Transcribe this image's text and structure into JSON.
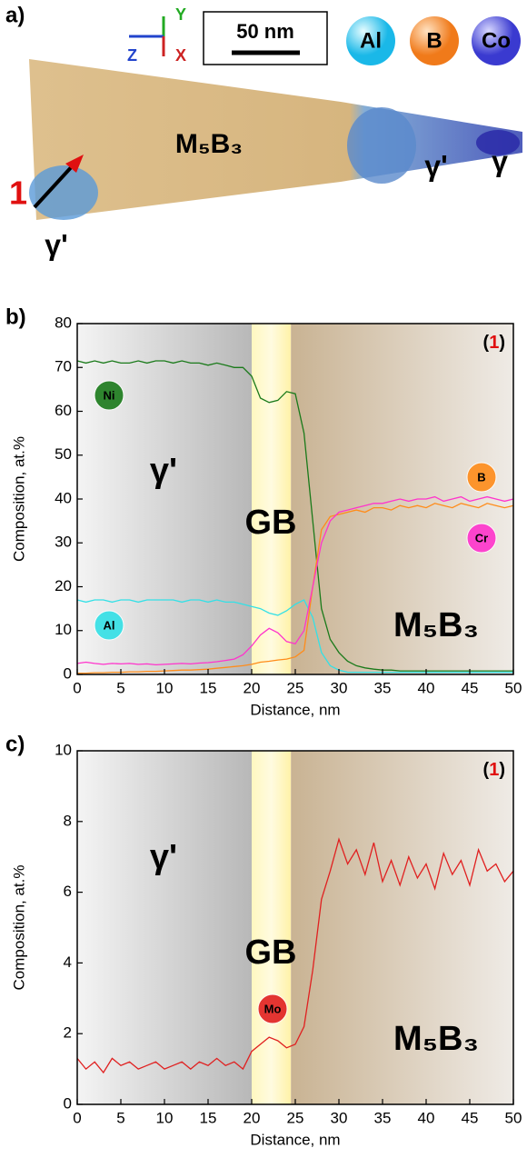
{
  "panel_a": {
    "label": "a)",
    "axes": [
      "Y",
      "Z",
      "X"
    ],
    "scale_bar": "50 nm",
    "elements": [
      "Al",
      "B",
      "Co"
    ],
    "phases": [
      "M₅B₃",
      "γ'",
      "γ'",
      "γ"
    ],
    "marker": "1"
  },
  "chart_data": [
    {
      "type": "line",
      "panel_label": "b)",
      "xlabel": "Distance, nm",
      "ylabel": "Composition, at.%",
      "tag": [
        "(",
        "1",
        ")"
      ],
      "regions": [
        {
          "label": "γ'",
          "from": 0,
          "to": 20
        },
        {
          "label": "GB",
          "from": 20,
          "to": 24.5
        },
        {
          "label": "M₅B₃",
          "from": 24.5,
          "to": 50
        }
      ],
      "x": [
        0,
        1,
        2,
        3,
        4,
        5,
        6,
        7,
        8,
        9,
        10,
        11,
        12,
        13,
        14,
        15,
        16,
        17,
        18,
        19,
        20,
        21,
        22,
        23,
        24,
        25,
        26,
        27,
        28,
        29,
        30,
        31,
        32,
        33,
        34,
        35,
        36,
        37,
        38,
        39,
        40,
        41,
        42,
        43,
        44,
        45,
        46,
        47,
        48,
        49,
        50
      ],
      "xlim": [
        0,
        50
      ],
      "xticks": [
        0,
        5,
        10,
        15,
        20,
        25,
        30,
        35,
        40,
        45,
        50
      ],
      "ylim": [
        0,
        80
      ],
      "yticks": [
        0,
        10,
        20,
        30,
        40,
        50,
        60,
        70,
        80
      ],
      "series": [
        {
          "name": "Ni",
          "color": "#1a7a1a",
          "values": [
            71.5,
            71,
            71.5,
            71,
            71.5,
            71,
            71,
            71.5,
            71,
            71.5,
            71.5,
            71,
            71.5,
            71,
            71,
            70.5,
            71,
            70.5,
            70,
            70,
            68,
            63,
            62,
            62.5,
            64.5,
            64,
            55,
            35,
            15,
            8,
            5,
            3,
            2,
            1.5,
            1.2,
            1,
            1,
            0.8,
            0.8,
            0.8,
            0.8,
            0.8,
            0.8,
            0.8,
            0.8,
            0.8,
            0.8,
            0.8,
            0.8,
            0.8,
            0.8
          ]
        },
        {
          "name": "Al",
          "color": "#33e0e6",
          "values": [
            17,
            16.5,
            17,
            17,
            16.5,
            17,
            17,
            16.5,
            17,
            17,
            17,
            17,
            16.5,
            17,
            17,
            16.5,
            17,
            16.5,
            16.5,
            16,
            15.5,
            15,
            14,
            13.5,
            14.5,
            16,
            17,
            13,
            5,
            2,
            1,
            0.5,
            0.5,
            0.5,
            0.5,
            0.5,
            0.5,
            0.5,
            0.5,
            0.5,
            0.5,
            0.5,
            0.5,
            0.5,
            0.5,
            0.5,
            0.5,
            0.5,
            0.5,
            0.5,
            0.5
          ]
        },
        {
          "name": "B",
          "color": "#ff8c1a",
          "values": [
            0.3,
            0.3,
            0.4,
            0.4,
            0.5,
            0.5,
            0.6,
            0.6,
            0.7,
            0.7,
            0.8,
            0.9,
            1,
            1,
            1.1,
            1.2,
            1.4,
            1.6,
            1.8,
            2,
            2.3,
            2.8,
            3,
            3.3,
            3.5,
            4,
            5.5,
            20,
            33,
            36,
            36.5,
            37,
            37.5,
            37,
            38,
            38,
            37.5,
            38.5,
            38,
            38.5,
            38,
            39,
            38.5,
            38,
            39,
            38.5,
            38,
            39,
            38.5,
            38,
            38.5
          ]
        },
        {
          "name": "Cr",
          "color": "#ff33cc",
          "values": [
            2.5,
            2.8,
            2.5,
            2.3,
            2.5,
            2.4,
            2.5,
            2.3,
            2.4,
            2.2,
            2.3,
            2.4,
            2.5,
            2.4,
            2.6,
            2.7,
            2.9,
            3.2,
            3.5,
            4.5,
            6.5,
            9,
            10.5,
            9.5,
            7.5,
            7,
            10,
            20,
            30,
            35,
            37,
            37.5,
            38,
            38.5,
            39,
            39,
            39.5,
            40,
            39.5,
            40,
            40,
            40.5,
            39.5,
            40,
            40.5,
            39.5,
            40,
            40.5,
            40,
            39.5,
            40
          ]
        }
      ]
    },
    {
      "type": "line",
      "panel_label": "c)",
      "xlabel": "Distance, nm",
      "ylabel": "Composition, at.%",
      "tag": [
        "(",
        "1",
        ")"
      ],
      "regions": [
        {
          "label": "γ'",
          "from": 0,
          "to": 20
        },
        {
          "label": "GB",
          "from": 20,
          "to": 24.5
        },
        {
          "label": "M₅B₃",
          "from": 24.5,
          "to": 50
        }
      ],
      "x": [
        0,
        1,
        2,
        3,
        4,
        5,
        6,
        7,
        8,
        9,
        10,
        11,
        12,
        13,
        14,
        15,
        16,
        17,
        18,
        19,
        20,
        21,
        22,
        23,
        24,
        25,
        26,
        27,
        28,
        29,
        30,
        31,
        32,
        33,
        34,
        35,
        36,
        37,
        38,
        39,
        40,
        41,
        42,
        43,
        44,
        45,
        46,
        47,
        48,
        49,
        50
      ],
      "xlim": [
        0,
        50
      ],
      "xticks": [
        0,
        5,
        10,
        15,
        20,
        25,
        30,
        35,
        40,
        45,
        50
      ],
      "ylim": [
        0,
        10
      ],
      "yticks": [
        0,
        2,
        4,
        6,
        8,
        10
      ],
      "series": [
        {
          "name": "Mo",
          "color": "#e02020",
          "values": [
            1.3,
            1.0,
            1.2,
            0.9,
            1.3,
            1.1,
            1.2,
            1.0,
            1.1,
            1.2,
            1.0,
            1.1,
            1.2,
            1.0,
            1.2,
            1.1,
            1.3,
            1.1,
            1.2,
            1.0,
            1.5,
            1.7,
            1.9,
            1.8,
            1.6,
            1.7,
            2.2,
            3.8,
            5.8,
            6.6,
            7.5,
            6.8,
            7.2,
            6.5,
            7.4,
            6.3,
            6.9,
            6.2,
            7,
            6.4,
            6.8,
            6.1,
            7.1,
            6.5,
            6.9,
            6.2,
            7.2,
            6.6,
            6.8,
            6.3,
            6.6
          ]
        }
      ]
    }
  ]
}
